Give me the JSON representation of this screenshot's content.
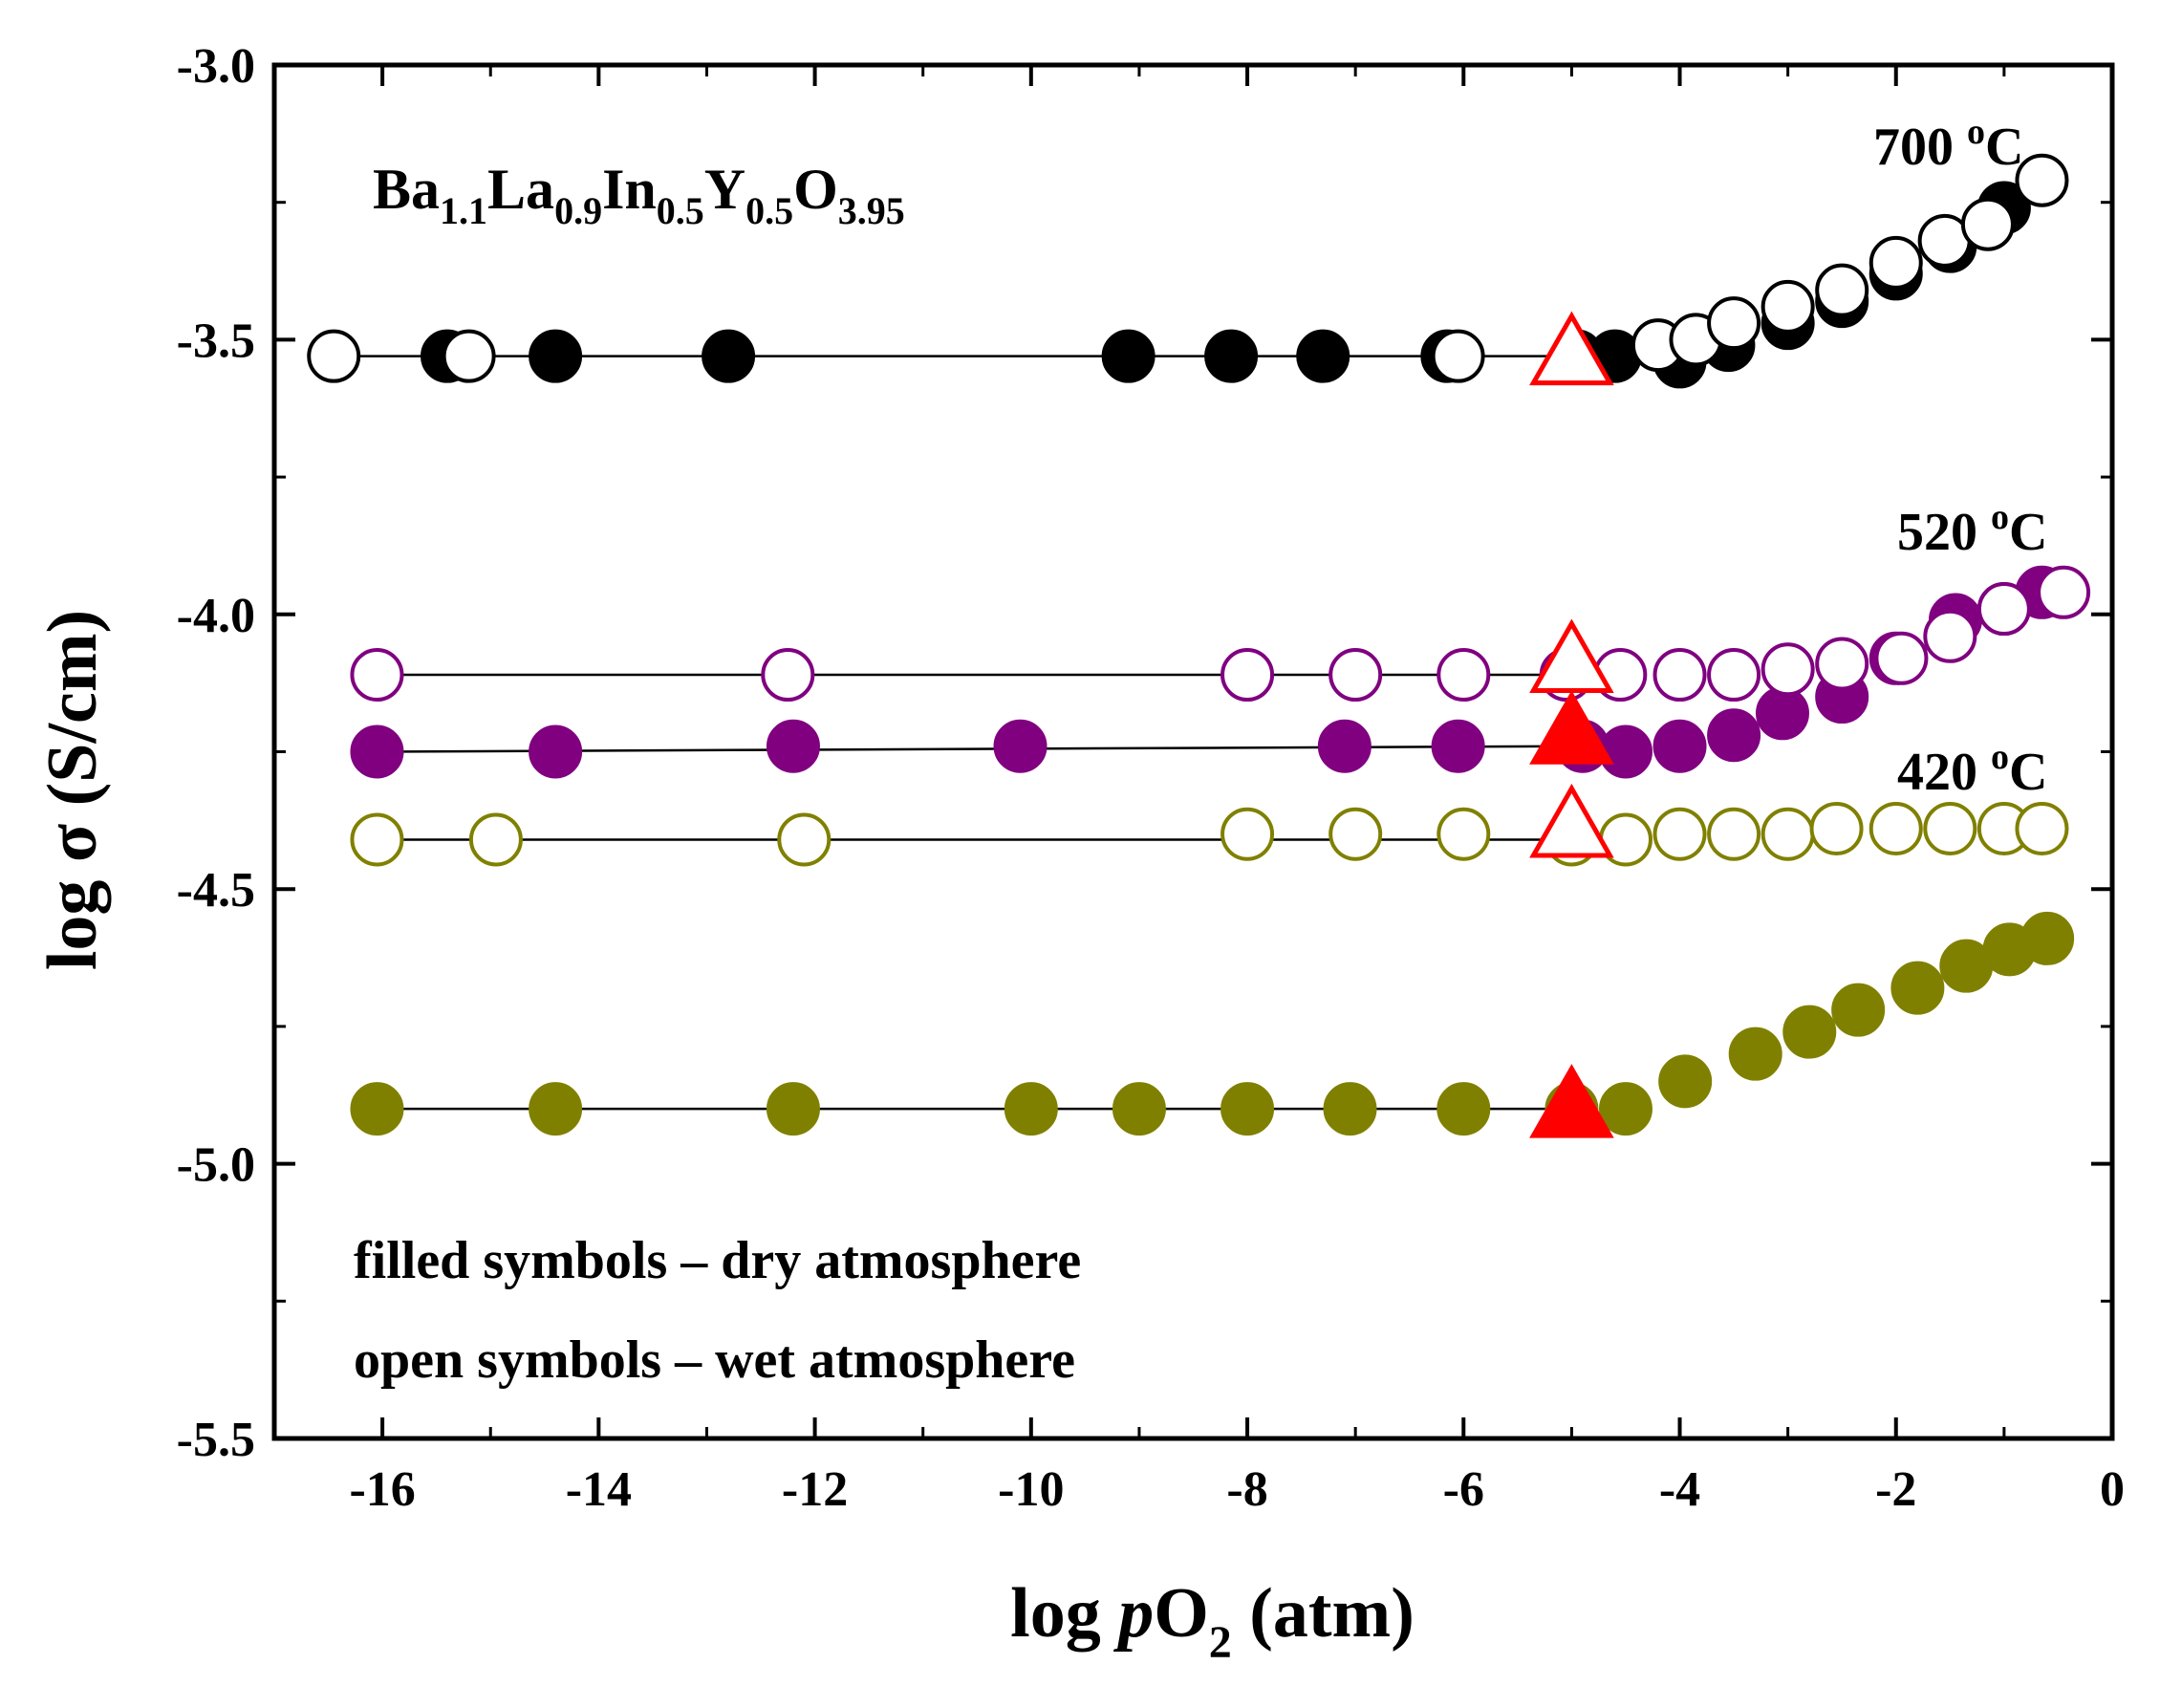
{
  "chart_data": {
    "type": "scatter",
    "title": "",
    "compound": {
      "base": [
        "Ba",
        "La",
        "In",
        "Y",
        "O"
      ],
      "subs": [
        "1.1",
        "0.9",
        "0.5",
        "0.5",
        "3.95"
      ]
    },
    "xlabel": {
      "prefix": "log ",
      "italic": "p",
      "main": "O",
      "sub": "2",
      "suffix": " (atm)"
    },
    "ylabel": "log σ (S/cm)",
    "xlim": [
      -17,
      0
    ],
    "ylim": [
      -5.5,
      -3.0
    ],
    "xticks": [
      -16,
      -14,
      -12,
      -10,
      -8,
      -6,
      -4,
      -2,
      0
    ],
    "yticks": [
      -3.0,
      -3.5,
      -4.0,
      -4.5,
      -5.0,
      -5.5
    ],
    "xtick_labels": [
      "-16",
      "-14",
      "-12",
      "-10",
      "-8",
      "-6",
      "-4",
      "-2",
      "0"
    ],
    "ytick_labels": [
      "-3.0",
      "-3.5",
      "-4.0",
      "-4.5",
      "-5.0",
      "-5.5"
    ],
    "temperature_labels": [
      {
        "label": "700 oC",
        "number": "700",
        "sup": "o",
        "unit": "C"
      },
      {
        "label": "520 oC",
        "number": "520",
        "sup": "o",
        "unit": "C"
      },
      {
        "label": "420 oC",
        "number": "420",
        "sup": "o",
        "unit": "C"
      }
    ],
    "notes": [
      "filled symbols – dry atmosphere",
      "open symbols – wet atmosphere"
    ],
    "colors": {
      "700": "#000000",
      "520": "#800080",
      "420": "#808000",
      "triangle": "#ff0000"
    },
    "series": [
      {
        "name": "700 °C dry",
        "temperature": "700",
        "atmosphere": "dry",
        "filled": true,
        "color": "#000000",
        "x": [
          -15.4,
          -14.4,
          -12.8,
          -9.1,
          -8.15,
          -7.3,
          -6.15,
          -4.95,
          -4.6,
          -4.0,
          -3.55,
          -3.0,
          -2.5,
          -2.0,
          -1.5,
          -1.0
        ],
        "y": [
          -3.53,
          -3.53,
          -3.53,
          -3.53,
          -3.53,
          -3.53,
          -3.53,
          -3.53,
          -3.53,
          -3.54,
          -3.51,
          -3.47,
          -3.43,
          -3.38,
          -3.33,
          -3.26
        ]
      },
      {
        "name": "700 °C wet",
        "temperature": "700",
        "atmosphere": "wet",
        "filled": false,
        "color": "#000000",
        "x": [
          -16.45,
          -15.2,
          -6.05,
          -4.2,
          -3.85,
          -3.5,
          -3.0,
          -2.5,
          -2.0,
          -1.55,
          -1.15,
          -0.65
        ],
        "y": [
          -3.53,
          -3.53,
          -3.53,
          -3.51,
          -3.5,
          -3.47,
          -3.44,
          -3.41,
          -3.36,
          -3.32,
          -3.29,
          -3.21
        ]
      },
      {
        "name": "700 °C dry (triangle)",
        "temperature": "700",
        "atmosphere": "dry",
        "marker": "triangle",
        "filled": false,
        "color": "#ff0000",
        "x": [
          -5.0
        ],
        "y": [
          -3.53
        ]
      },
      {
        "name": "520 °C wet",
        "temperature": "520",
        "atmosphere": "wet",
        "filled": false,
        "color": "#800080",
        "x": [
          -16.05,
          -12.25,
          -8.0,
          -7.0,
          -6.0,
          -5.05,
          -4.55,
          -4.0,
          -3.5,
          -3.0,
          -2.5,
          -1.95,
          -1.5,
          -1.0,
          -0.45
        ],
        "y": [
          -4.11,
          -4.11,
          -4.11,
          -4.11,
          -4.11,
          -4.11,
          -4.11,
          -4.11,
          -4.11,
          -4.1,
          -4.09,
          -4.08,
          -4.04,
          -3.99,
          -3.96
        ]
      },
      {
        "name": "520 °C dry",
        "temperature": "520",
        "atmosphere": "dry",
        "filled": true,
        "color": "#800080",
        "x": [
          -16.05,
          -14.4,
          -12.2,
          -10.1,
          -7.1,
          -6.05,
          -4.9,
          -4.5,
          -4.0,
          -3.5,
          -3.05,
          -2.5,
          -2.0,
          -1.45,
          -1.0,
          -0.65
        ],
        "y": [
          -4.25,
          -4.25,
          -4.24,
          -4.24,
          -4.24,
          -4.24,
          -4.24,
          -4.25,
          -4.24,
          -4.22,
          -4.18,
          -4.15,
          -4.08,
          -4.01,
          -3.99,
          -3.96
        ]
      },
      {
        "name": "520 °C (triangle open)",
        "temperature": "520",
        "atmosphere": "wet",
        "marker": "triangle",
        "filled": false,
        "color": "#ff0000",
        "x": [
          -5.0
        ],
        "y": [
          -4.09
        ]
      },
      {
        "name": "520 °C (triangle filled)",
        "temperature": "520",
        "atmosphere": "dry",
        "marker": "triangle",
        "filled": true,
        "color": "#ff0000",
        "x": [
          -5.0
        ],
        "y": [
          -4.22
        ]
      },
      {
        "name": "420 °C wet",
        "temperature": "420",
        "atmosphere": "wet",
        "filled": false,
        "color": "#808000",
        "x": [
          -16.05,
          -14.95,
          -12.1,
          -8.0,
          -7.0,
          -6.0,
          -5.0,
          -4.5,
          -4.0,
          -3.5,
          -3.0,
          -2.55,
          -2.0,
          -1.5,
          -1.0,
          -0.65
        ],
        "y": [
          -4.41,
          -4.41,
          -4.41,
          -4.4,
          -4.4,
          -4.4,
          -4.41,
          -4.41,
          -4.4,
          -4.4,
          -4.4,
          -4.39,
          -4.39,
          -4.39,
          -4.39,
          -4.39
        ]
      },
      {
        "name": "420 °C (triangle open)",
        "temperature": "420",
        "atmosphere": "wet",
        "marker": "triangle",
        "filled": false,
        "color": "#ff0000",
        "x": [
          -5.0
        ],
        "y": [
          -4.39
        ]
      },
      {
        "name": "420 °C dry",
        "temperature": "420",
        "atmosphere": "dry",
        "filled": true,
        "color": "#808000",
        "x": [
          -16.05,
          -14.4,
          -12.2,
          -10.0,
          -9.0,
          -8.0,
          -7.05,
          -6.0,
          -5.0,
          -4.5,
          -3.95,
          -3.3,
          -2.8,
          -2.35,
          -1.8,
          -1.35,
          -0.95,
          -0.6
        ],
        "y": [
          -4.9,
          -4.9,
          -4.9,
          -4.9,
          -4.9,
          -4.9,
          -4.9,
          -4.9,
          -4.9,
          -4.9,
          -4.85,
          -4.8,
          -4.76,
          -4.72,
          -4.68,
          -4.64,
          -4.61,
          -4.59
        ]
      },
      {
        "name": "420 °C (triangle filled)",
        "temperature": "420",
        "atmosphere": "dry",
        "marker": "triangle",
        "filled": true,
        "color": "#ff0000",
        "x": [
          -5.0
        ],
        "y": [
          -4.9
        ]
      }
    ],
    "connecting_lines": [
      {
        "temperature": "700",
        "x": [
          -16.45,
          -5.0
        ],
        "y": [
          -3.53,
          -3.53
        ]
      },
      {
        "temperature": "520",
        "atmosphere": "wet",
        "x": [
          -16.05,
          -5.0
        ],
        "y": [
          -4.11,
          -4.11
        ]
      },
      {
        "temperature": "520",
        "atmosphere": "dry",
        "x": [
          -16.05,
          -5.0
        ],
        "y": [
          -4.25,
          -4.24
        ]
      },
      {
        "temperature": "420",
        "atmosphere": "wet",
        "x": [
          -16.05,
          -5.0
        ],
        "y": [
          -4.41,
          -4.41
        ]
      },
      {
        "temperature": "420",
        "atmosphere": "dry",
        "x": [
          -16.05,
          -5.0
        ],
        "y": [
          -4.9,
          -4.9
        ]
      }
    ]
  }
}
